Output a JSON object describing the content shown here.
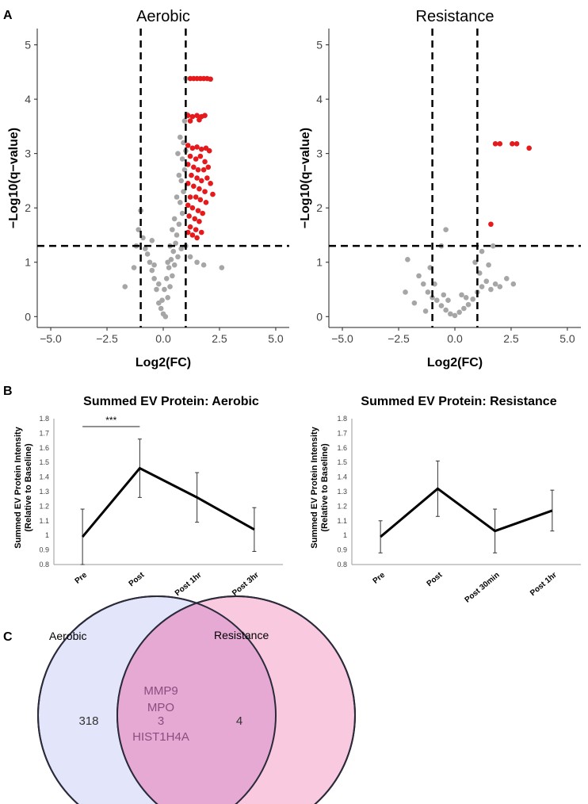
{
  "panel_labels": {
    "a": "A",
    "b": "B",
    "c": "C"
  },
  "chart_data": [
    {
      "type": "scatter",
      "name": "volcano-aerobic",
      "title": "Aerobic",
      "xlabel": "Log2(FC)",
      "ylabel": "−Log10(q−value)",
      "xlim": [
        -5.6,
        5.6
      ],
      "ylim": [
        -0.2,
        5.3
      ],
      "xticks": [
        -5,
        -2.5,
        0,
        2.5,
        5
      ],
      "xtick_labels": [
        "−5.0",
        "−2.5",
        "0.0",
        "2.5",
        "5.0"
      ],
      "yticks": [
        0,
        1,
        2,
        3,
        4,
        5
      ],
      "ytick_labels": [
        "0",
        "1",
        "2",
        "3",
        "4",
        "5"
      ],
      "vlines": [
        -1,
        1
      ],
      "hline": 1.3,
      "colors": {
        "nonsig": "#a6a6a6",
        "sig": "#e41a1c"
      },
      "sig_points": [
        [
          1.2,
          4.38
        ],
        [
          1.35,
          4.38
        ],
        [
          1.5,
          4.38
        ],
        [
          1.65,
          4.38
        ],
        [
          1.8,
          4.38
        ],
        [
          1.95,
          4.38
        ],
        [
          2.1,
          4.37
        ],
        [
          1.1,
          3.7
        ],
        [
          1.3,
          3.68
        ],
        [
          1.5,
          3.7
        ],
        [
          1.7,
          3.68
        ],
        [
          1.85,
          3.7
        ],
        [
          1.2,
          3.6
        ],
        [
          1.6,
          3.62
        ],
        [
          1.1,
          3.15
        ],
        [
          1.3,
          3.1
        ],
        [
          1.5,
          3.12
        ],
        [
          1.7,
          3.08
        ],
        [
          1.9,
          3.1
        ],
        [
          2.05,
          3.05
        ],
        [
          1.2,
          2.95
        ],
        [
          1.45,
          2.9
        ],
        [
          1.65,
          2.95
        ],
        [
          1.85,
          2.85
        ],
        [
          1.1,
          2.8
        ],
        [
          1.35,
          2.75
        ],
        [
          1.55,
          2.7
        ],
        [
          1.8,
          2.7
        ],
        [
          2.0,
          2.75
        ],
        [
          1.25,
          2.6
        ],
        [
          1.5,
          2.55
        ],
        [
          1.7,
          2.5
        ],
        [
          1.95,
          2.55
        ],
        [
          2.1,
          2.45
        ],
        [
          1.1,
          2.45
        ],
        [
          1.35,
          2.4
        ],
        [
          1.6,
          2.35
        ],
        [
          1.85,
          2.3
        ],
        [
          2.2,
          2.25
        ],
        [
          1.2,
          2.2
        ],
        [
          1.45,
          2.2
        ],
        [
          1.65,
          2.15
        ],
        [
          1.9,
          2.1
        ],
        [
          1.1,
          2.05
        ],
        [
          1.3,
          2.0
        ],
        [
          1.55,
          1.95
        ],
        [
          1.75,
          1.9
        ],
        [
          1.15,
          1.85
        ],
        [
          1.4,
          1.8
        ],
        [
          1.6,
          1.75
        ],
        [
          1.2,
          1.65
        ],
        [
          1.45,
          1.6
        ],
        [
          1.1,
          1.55
        ],
        [
          1.3,
          1.5
        ],
        [
          1.5,
          1.45
        ],
        [
          1.7,
          1.55
        ]
      ],
      "nonsig_points": [
        [
          1.0,
          4.38
        ],
        [
          1.05,
          3.72
        ],
        [
          0.95,
          3.6
        ],
        [
          0.9,
          3.2
        ],
        [
          1.0,
          3.05
        ],
        [
          0.85,
          2.9
        ],
        [
          0.95,
          2.7
        ],
        [
          0.8,
          2.5
        ],
        [
          0.9,
          2.3
        ],
        [
          0.75,
          2.1
        ],
        [
          0.85,
          1.9
        ],
        [
          0.7,
          1.7
        ],
        [
          0.6,
          1.5
        ],
        [
          0.55,
          1.35
        ],
        [
          0.45,
          1.2
        ],
        [
          0.35,
          1.05
        ],
        [
          0.25,
          0.9
        ],
        [
          0.15,
          0.7
        ],
        [
          0.05,
          0.5
        ],
        [
          -0.05,
          0.3
        ],
        [
          -0.1,
          0.15
        ],
        [
          0.0,
          0.05
        ],
        [
          0.1,
          0.0
        ],
        [
          -0.2,
          0.25
        ],
        [
          0.2,
          0.35
        ],
        [
          0.3,
          0.55
        ],
        [
          -0.3,
          0.5
        ],
        [
          -0.4,
          0.7
        ],
        [
          -0.5,
          0.85
        ],
        [
          -0.6,
          1.0
        ],
        [
          -0.7,
          1.15
        ],
        [
          -0.8,
          1.25
        ],
        [
          -0.9,
          1.45
        ],
        [
          -1.1,
          1.6
        ],
        [
          -0.5,
          1.4
        ],
        [
          -1.3,
          0.9
        ],
        [
          -1.2,
          1.3
        ],
        [
          -1.0,
          1.95
        ],
        [
          -0.4,
          0.95
        ],
        [
          -0.2,
          0.6
        ],
        [
          0.4,
          0.75
        ],
        [
          0.5,
          0.95
        ],
        [
          0.65,
          1.1
        ],
        [
          0.8,
          1.25
        ],
        [
          1.0,
          1.3
        ],
        [
          1.2,
          1.1
        ],
        [
          1.5,
          1.0
        ],
        [
          1.8,
          0.95
        ],
        [
          2.6,
          0.9
        ],
        [
          -1.7,
          0.55
        ],
        [
          0.7,
          2.6
        ],
        [
          0.6,
          2.2
        ],
        [
          0.5,
          1.8
        ],
        [
          0.4,
          1.6
        ],
        [
          0.3,
          1.3
        ],
        [
          0.2,
          1.0
        ],
        [
          0.65,
          3.0
        ],
        [
          0.75,
          3.3
        ]
      ]
    },
    {
      "type": "scatter",
      "name": "volcano-resistance",
      "title": "Resistance",
      "xlabel": "Log2(FC)",
      "ylabel": "−Log10(q−value)",
      "xlim": [
        -5.6,
        5.6
      ],
      "ylim": [
        -0.2,
        5.3
      ],
      "xticks": [
        -5,
        -2.5,
        0,
        2.5,
        5
      ],
      "xtick_labels": [
        "−5.0",
        "−2.5",
        "0.0",
        "2.5",
        "5.0"
      ],
      "yticks": [
        0,
        1,
        2,
        3,
        4,
        5
      ],
      "ytick_labels": [
        "0",
        "1",
        "2",
        "3",
        "4",
        "5"
      ],
      "vlines": [
        -1,
        1
      ],
      "hline": 1.3,
      "colors": {
        "nonsig": "#a6a6a6",
        "sig": "#e41a1c"
      },
      "sig_points": [
        [
          1.8,
          3.18
        ],
        [
          2.0,
          3.18
        ],
        [
          2.55,
          3.18
        ],
        [
          2.75,
          3.18
        ],
        [
          3.3,
          3.1
        ],
        [
          1.6,
          1.7
        ]
      ],
      "nonsig_points": [
        [
          -2.1,
          1.05
        ],
        [
          -1.6,
          0.75
        ],
        [
          -1.4,
          0.6
        ],
        [
          -1.2,
          0.45
        ],
        [
          -1.0,
          0.35
        ],
        [
          -0.8,
          0.3
        ],
        [
          -0.6,
          0.2
        ],
        [
          -0.4,
          0.12
        ],
        [
          -0.2,
          0.05
        ],
        [
          0.0,
          0.02
        ],
        [
          0.2,
          0.08
        ],
        [
          0.4,
          0.15
        ],
        [
          0.6,
          0.22
        ],
        [
          0.8,
          0.32
        ],
        [
          1.0,
          0.45
        ],
        [
          1.2,
          0.55
        ],
        [
          1.4,
          0.65
        ],
        [
          1.6,
          0.5
        ],
        [
          1.8,
          0.6
        ],
        [
          2.0,
          0.55
        ],
        [
          2.3,
          0.7
        ],
        [
          2.6,
          0.6
        ],
        [
          -0.5,
          0.4
        ],
        [
          -0.9,
          0.6
        ],
        [
          -1.1,
          0.9
        ],
        [
          -0.6,
          1.3
        ],
        [
          -0.4,
          1.6
        ],
        [
          0.9,
          1.0
        ],
        [
          1.2,
          1.2
        ],
        [
          1.7,
          1.3
        ],
        [
          0.5,
          0.35
        ],
        [
          -1.8,
          0.25
        ],
        [
          -1.3,
          0.1
        ],
        [
          1.1,
          0.8
        ],
        [
          1.5,
          0.95
        ],
        [
          -0.3,
          0.3
        ],
        [
          0.3,
          0.4
        ],
        [
          -2.2,
          0.45
        ]
      ]
    },
    {
      "type": "line",
      "name": "summed-ev-aerobic",
      "title": "Summed EV Protein: Aerobic",
      "ylabel": "Summed EV Protein Intensity\n(Relative to Baseline)",
      "categories": [
        "Pre",
        "Post",
        "Post 1hr",
        "Post 3hr"
      ],
      "values": [
        0.99,
        1.46,
        1.26,
        1.04
      ],
      "errors": [
        0.19,
        0.2,
        0.17,
        0.15
      ],
      "ylim": [
        0.8,
        1.8
      ],
      "yticks": [
        0.8,
        0.9,
        1,
        1.1,
        1.2,
        1.3,
        1.4,
        1.5,
        1.6,
        1.7,
        1.8
      ],
      "ytick_labels": [
        "0.8",
        "0.9",
        "1",
        "1.1",
        "1.2",
        "1.3",
        "1.4",
        "1.5",
        "1.6",
        "1.7",
        "1.8"
      ],
      "annotation": "***"
    },
    {
      "type": "line",
      "name": "summed-ev-resistance",
      "title": "Summed EV Protein: Resistance",
      "ylabel": "Summed EV Protein Intensity\n(Relative to Baseline)",
      "categories": [
        "Pre",
        "Post",
        "Post 30min",
        "Post 1hr"
      ],
      "values": [
        0.99,
        1.32,
        1.03,
        1.17
      ],
      "errors": [
        0.11,
        0.19,
        0.15,
        0.14
      ],
      "ylim": [
        0.8,
        1.8
      ],
      "yticks": [
        0.8,
        0.9,
        1,
        1.1,
        1.2,
        1.3,
        1.4,
        1.5,
        1.6,
        1.7,
        1.8
      ],
      "ytick_labels": [
        "0.8",
        "0.9",
        "1",
        "1.1",
        "1.2",
        "1.3",
        "1.4",
        "1.5",
        "1.6",
        "1.7",
        "1.8"
      ]
    }
  ],
  "venn": {
    "left_label": "Aerobic",
    "right_label": "Resistance",
    "left_only": "318",
    "right_only": "4",
    "overlap_genes": [
      "MMP9",
      "MPO",
      "3",
      "HIST1H4A"
    ],
    "colors": {
      "left": "#e3e6fa",
      "right": "#f7c3dc",
      "overlap": "#e5a9d4",
      "stroke": "#2a2a3a",
      "overlap_text": "#8a4d7f"
    }
  }
}
